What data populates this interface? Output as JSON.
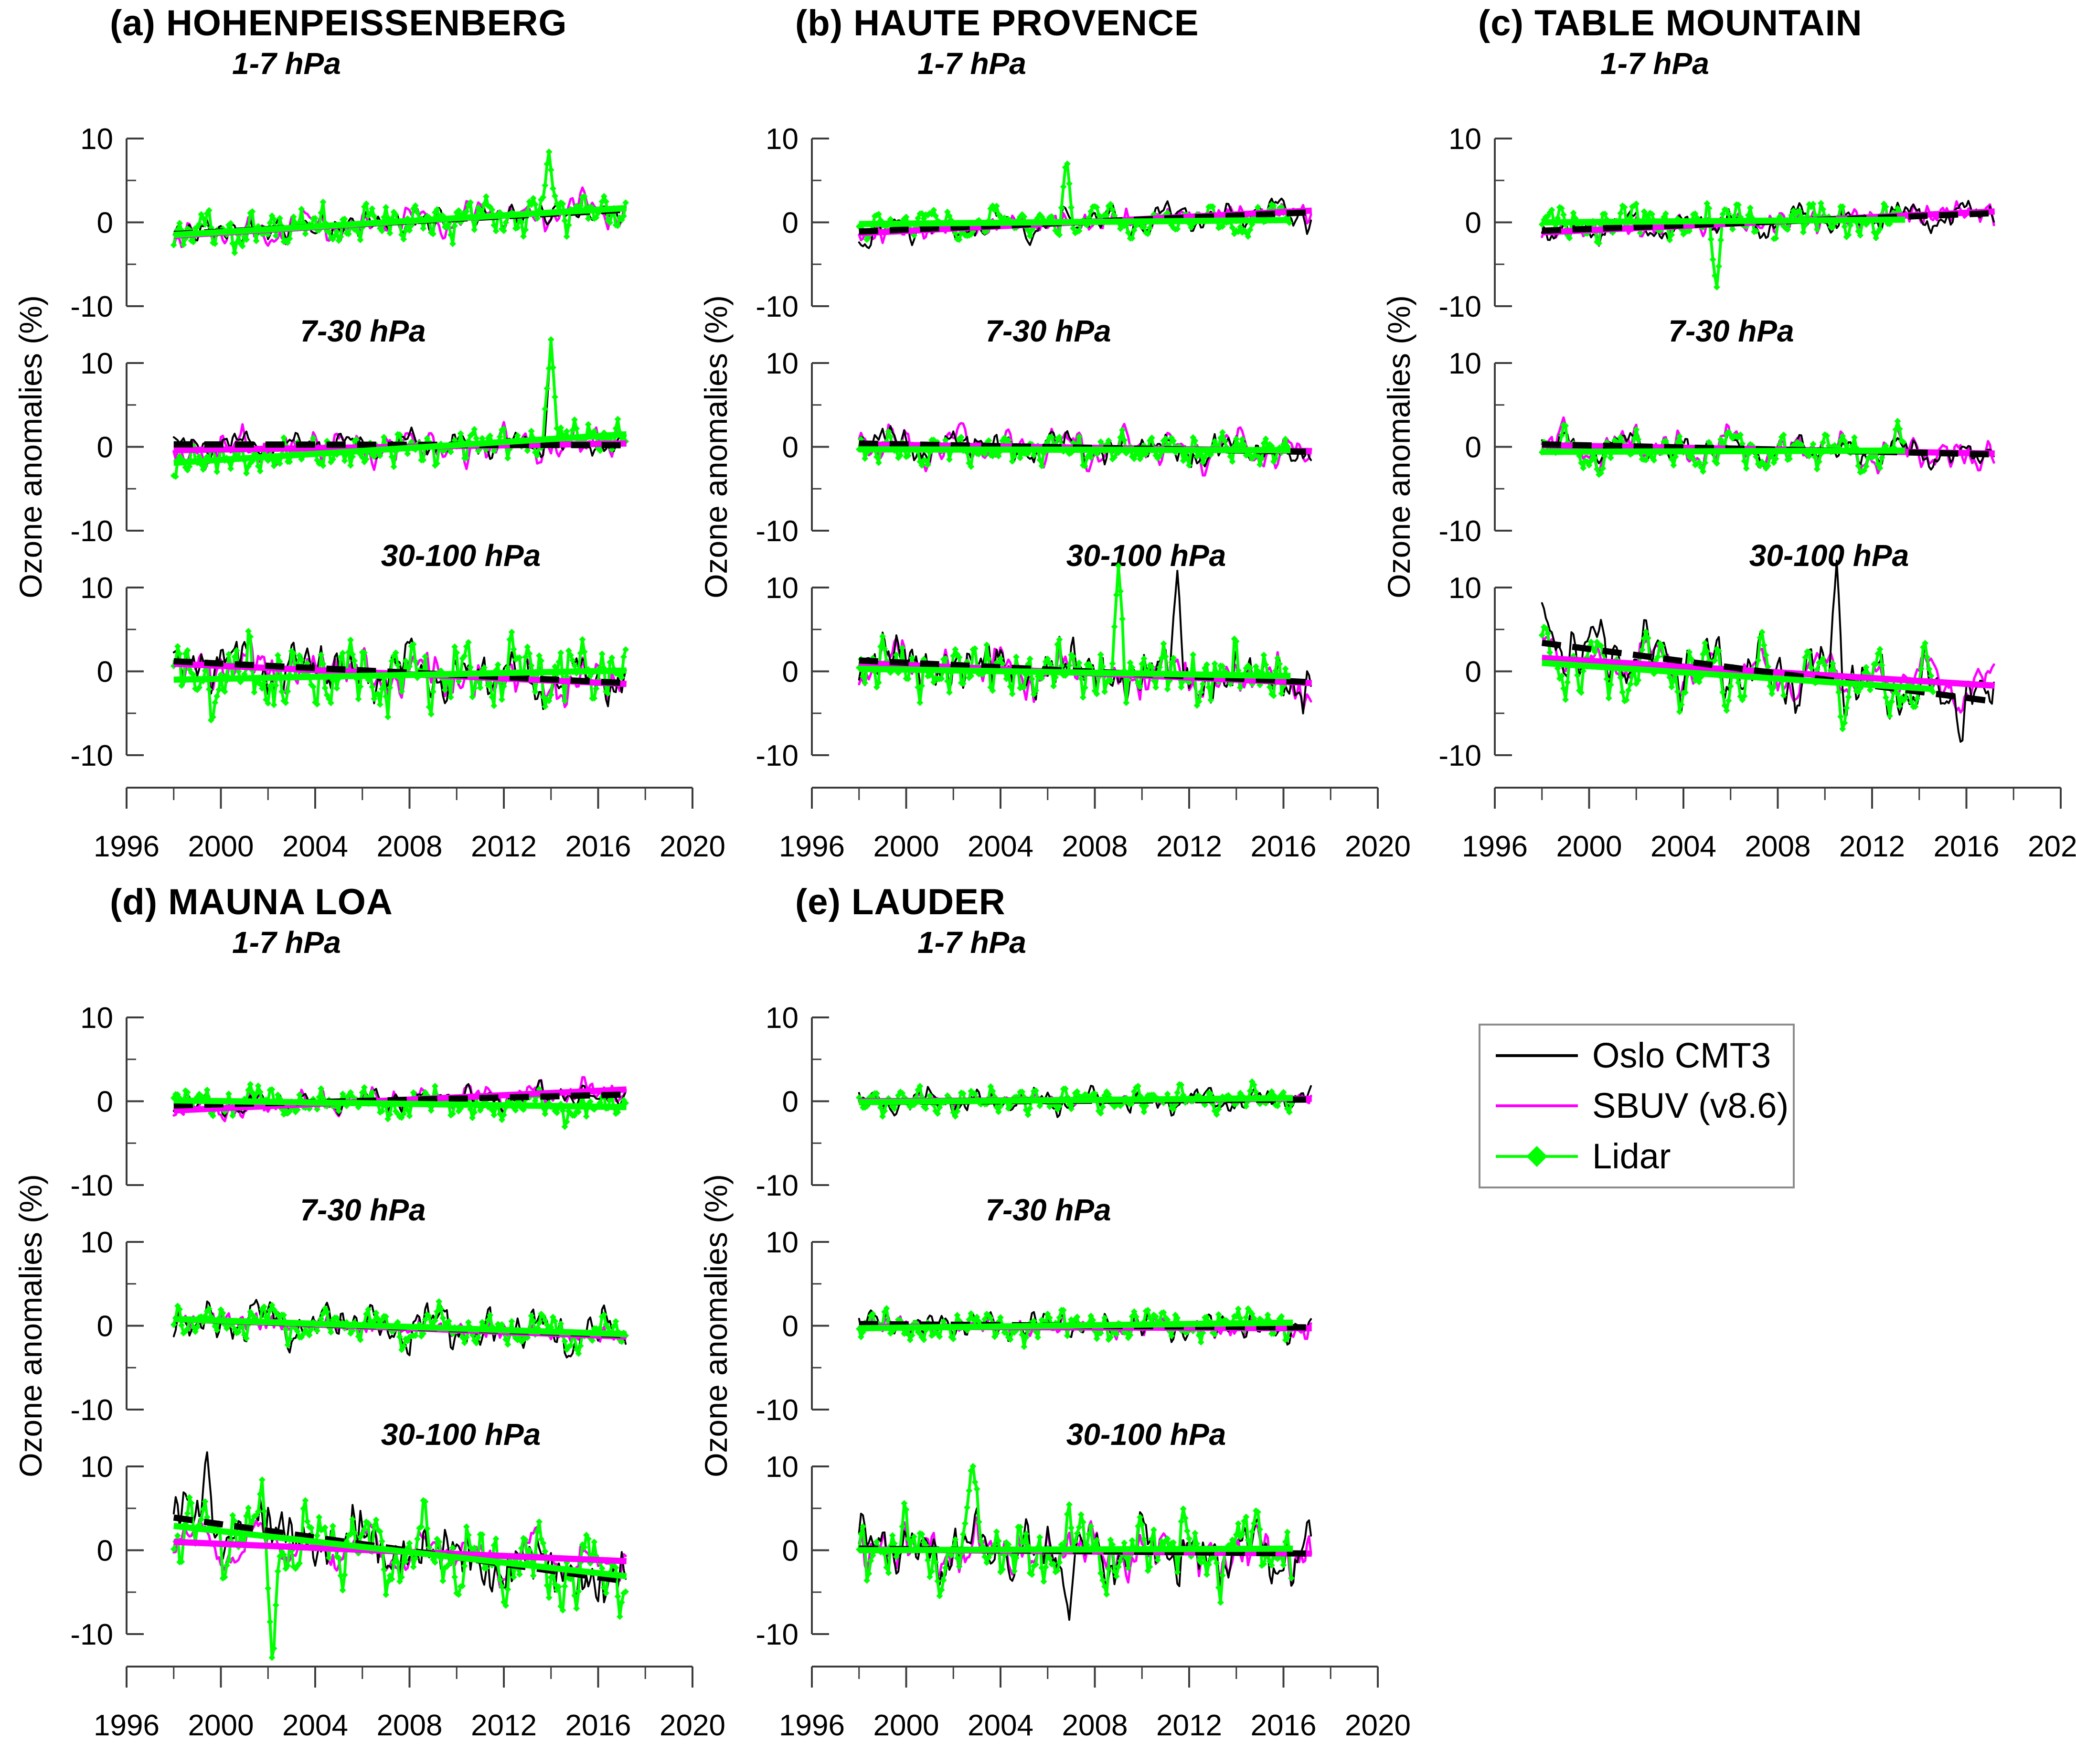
{
  "figure": {
    "background": "#FFFFFF"
  },
  "chart_data": {
    "type": "line",
    "description": "Monthly ozone anomaly time series (1998-2017) with linear trend lines, at five lidar stations, for three pressure layers each",
    "y_axis": {
      "label": "Ozone anomalies (%)",
      "major_ticks": [
        10,
        0,
        -10
      ],
      "minor_ticks": [
        5,
        -5
      ],
      "range_per_subplot": [
        -10,
        10
      ]
    },
    "x_axis": {
      "major_ticks": [
        1996,
        2000,
        2004,
        2008,
        2012,
        2016,
        2020
      ],
      "minor_ticks": [
        1998,
        2002,
        2006,
        2010,
        2014,
        2018
      ],
      "range": [
        1996,
        2020
      ]
    },
    "data_x_start": 1998.0,
    "data_x_end": 2017.2,
    "sampling": "monthly",
    "grid": false,
    "legend": {
      "position": "bottom-right-of-figure",
      "entries": [
        {
          "label": "Oslo CMT3",
          "color": "#000000",
          "style": "thin-line",
          "trend_style": "thick-dashed"
        },
        {
          "label": "SBUV (v8.6)",
          "color": "#FF00FF",
          "style": "thin-line",
          "trend_style": "thick-solid"
        },
        {
          "label": "Lidar",
          "color": "#00FF00",
          "style": "line-with-diamond-markers",
          "trend_style": "thick-solid"
        }
      ]
    },
    "panels": [
      {
        "id": "a",
        "title": "(a) HOHENPEISSENBERG",
        "subplots": [
          {
            "label": "1-7 hPa",
            "series": [
              {
                "name": "Oslo CMT3",
                "trend_1998": -1.4,
                "trend_2017": 1.5,
                "amplitude": 2.6,
                "seed": 101
              },
              {
                "name": "SBUV (v8.6)",
                "trend_1998": -1.6,
                "trend_2017": 1.7,
                "amplitude": 2.6,
                "seed": 102
              },
              {
                "name": "Lidar",
                "trend_1998": -1.5,
                "trend_2017": 1.7,
                "amplitude": 3.6,
                "seed": 103,
                "spike": [
                  2013.9,
                  8.8
                ]
              }
            ]
          },
          {
            "label": "7-30 hPa",
            "series": [
              {
                "name": "Oslo CMT3",
                "trend_1998": 0.3,
                "trend_2017": 0.2,
                "amplitude": 3.0,
                "seed": 104,
                "spike": [
                  2014.0,
                  12.3
                ]
              },
              {
                "name": "SBUV (v8.6)",
                "trend_1998": -0.4,
                "trend_2017": 0.4,
                "amplitude": 3.4,
                "seed": 105
              },
              {
                "name": "Lidar",
                "trend_1998": -1.9,
                "trend_2017": 1.5,
                "amplitude": 3.2,
                "seed": 106,
                "spike": [
                  2014.0,
                  12.8
                ]
              }
            ]
          },
          {
            "label": "30-100 hPa",
            "series": [
              {
                "name": "Oslo CMT3",
                "trend_1998": 1.2,
                "trend_2017": -1.4,
                "amplitude": 5.0,
                "seed": 107
              },
              {
                "name": "SBUV (v8.6)",
                "trend_1998": 0.9,
                "trend_2017": -1.5,
                "amplitude": 4.3,
                "seed": 108
              },
              {
                "name": "Lidar",
                "trend_1998": -1.0,
                "trend_2017": 0.1,
                "amplitude": 5.5,
                "seed": 109
              }
            ]
          }
        ]
      },
      {
        "id": "b",
        "title": "(b) HAUTE PROVENCE",
        "subplots": [
          {
            "label": "1-7 hPa",
            "series": [
              {
                "name": "Oslo CMT3",
                "trend_1998": -1.1,
                "trend_2017": 1.2,
                "amplitude": 2.4,
                "seed": 201
              },
              {
                "name": "SBUV (v8.6)",
                "trend_1998": -1.3,
                "trend_2017": 1.4,
                "amplitude": 2.4,
                "seed": 202
              },
              {
                "name": "Lidar",
                "trend_1998": -0.2,
                "trend_2017": 0.3,
                "amplitude": 3.0,
                "seed": 203,
                "x_end": 2016.3,
                "spike": [
                  2006.8,
                  7.8
                ]
              }
            ]
          },
          {
            "label": "7-30 hPa",
            "series": [
              {
                "name": "Oslo CMT3",
                "trend_1998": 0.4,
                "trend_2017": -0.6,
                "amplitude": 3.0,
                "seed": 204
              },
              {
                "name": "SBUV (v8.6)",
                "trend_1998": 0.3,
                "trend_2017": -0.5,
                "amplitude": 3.2,
                "seed": 205
              },
              {
                "name": "Lidar",
                "trend_1998": -0.3,
                "trend_2017": -0.4,
                "amplitude": 3.2,
                "seed": 206,
                "x_end": 2016.3
              }
            ]
          },
          {
            "label": "30-100 hPa",
            "series": [
              {
                "name": "Oslo CMT3",
                "trend_1998": 1.3,
                "trend_2017": -1.3,
                "amplitude": 5.2,
                "seed": 207,
                "spike": [
                  2011.5,
                  12.0
                ]
              },
              {
                "name": "SBUV (v8.6)",
                "trend_1998": 1.0,
                "trend_2017": -1.4,
                "amplitude": 4.2,
                "seed": 208
              },
              {
                "name": "Lidar",
                "trend_1998": 0.3,
                "trend_2017": -0.6,
                "amplitude": 5.2,
                "seed": 209,
                "x_end": 2016.3,
                "spike": [
                  2009.0,
                  12.6
                ]
              }
            ]
          }
        ]
      },
      {
        "id": "c",
        "title": "(c) TABLE MOUNTAIN",
        "subplots": [
          {
            "label": "1-7 hPa",
            "series": [
              {
                "name": "Oslo CMT3",
                "trend_1998": -1.0,
                "trend_2017": 1.1,
                "amplitude": 2.3,
                "seed": 301
              },
              {
                "name": "SBUV (v8.6)",
                "trend_1998": -1.2,
                "trend_2017": 1.3,
                "amplitude": 2.3,
                "seed": 302
              },
              {
                "name": "Lidar",
                "trend_1998": 0.0,
                "trend_2017": 0.4,
                "amplitude": 3.2,
                "seed": 303,
                "x_end": 2013.4,
                "gaps": [
                  [
                    2007.1,
                    2007.8
                  ]
                ],
                "spike": [
                  2005.4,
                  -8.2
                ]
              }
            ]
          },
          {
            "label": "7-30 hPa",
            "series": [
              {
                "name": "Oslo CMT3",
                "trend_1998": 0.3,
                "trend_2017": -0.9,
                "amplitude": 2.6,
                "seed": 304
              },
              {
                "name": "SBUV (v8.6)",
                "trend_1998": 0.2,
                "trend_2017": -0.8,
                "amplitude": 2.8,
                "seed": 305
              },
              {
                "name": "Lidar",
                "trend_1998": -0.6,
                "trend_2017": -0.4,
                "amplitude": 2.6,
                "seed": 306,
                "x_end": 2013.4
              }
            ]
          },
          {
            "label": "30-100 hPa",
            "series": [
              {
                "name": "Oslo CMT3",
                "trend_1998": 3.4,
                "trend_2017": -3.6,
                "amplitude": 6.0,
                "seed": 307,
                "spike": [
                  2010.5,
                  13.5
                ]
              },
              {
                "name": "SBUV (v8.6)",
                "trend_1998": 1.6,
                "trend_2017": -1.7,
                "amplitude": 4.5,
                "seed": 308
              },
              {
                "name": "Lidar",
                "trend_1998": 1.0,
                "trend_2017": -2.6,
                "amplitude": 6.0,
                "seed": 309,
                "x_end": 2014.6,
                "gaps": [
                  [
                    2008.3,
                    2009.0
                  ]
                ]
              }
            ]
          }
        ]
      },
      {
        "id": "d",
        "title": "(d) MAUNA LOA",
        "subplots": [
          {
            "label": "1-7 hPa",
            "series": [
              {
                "name": "Oslo CMT3",
                "trend_1998": -0.5,
                "trend_2017": 0.8,
                "amplitude": 2.2,
                "seed": 401
              },
              {
                "name": "SBUV (v8.6)",
                "trend_1998": -1.1,
                "trend_2017": 1.4,
                "amplitude": 2.4,
                "seed": 402
              },
              {
                "name": "Lidar",
                "trend_1998": 0.1,
                "trend_2017": -0.7,
                "amplitude": 3.0,
                "seed": 403
              }
            ]
          },
          {
            "label": "7-30 hPa",
            "series": [
              {
                "name": "Oslo CMT3",
                "trend_1998": 0.8,
                "trend_2017": -1.1,
                "amplitude": 3.2,
                "seed": 404
              },
              {
                "name": "SBUV (v8.6)",
                "trend_1998": 0.8,
                "trend_2017": -1.3,
                "amplitude": 3.4,
                "seed": 405
              },
              {
                "name": "Lidar",
                "trend_1998": 0.8,
                "trend_2017": -1.0,
                "amplitude": 3.2,
                "seed": 406
              }
            ]
          },
          {
            "label": "30-100 hPa",
            "series": [
              {
                "name": "Oslo CMT3",
                "trend_1998": 3.9,
                "trend_2017": -3.7,
                "amplitude": 6.2,
                "seed": 407,
                "spike": [
                  1999.4,
                  12.2
                ]
              },
              {
                "name": "SBUV (v8.6)",
                "trend_1998": 1.0,
                "trend_2017": -1.3,
                "amplitude": 4.5,
                "seed": 408
              },
              {
                "name": "Lidar",
                "trend_1998": 2.9,
                "trend_2017": -3.1,
                "amplitude": 6.2,
                "seed": 409,
                "spike": [
                  2002.2,
                  -14.2
                ]
              }
            ]
          }
        ]
      },
      {
        "id": "e",
        "title": "(e) LAUDER",
        "subplots": [
          {
            "label": "1-7 hPa",
            "series": [
              {
                "name": "Oslo CMT3",
                "trend_1998": -0.1,
                "trend_2017": 0.2,
                "amplitude": 2.0,
                "seed": 501
              },
              {
                "name": "SBUV (v8.6)",
                "trend_1998": 0.0,
                "trend_2017": 0.3,
                "amplitude": 1.8,
                "seed": 502
              },
              {
                "name": "Lidar",
                "trend_1998": -0.1,
                "trend_2017": 0.4,
                "amplitude": 2.4,
                "seed": 503,
                "x_end": 2016.4
              }
            ]
          },
          {
            "label": "7-30 hPa",
            "series": [
              {
                "name": "Oslo CMT3",
                "trend_1998": 0.2,
                "trend_2017": -0.2,
                "amplitude": 2.8,
                "seed": 504
              },
              {
                "name": "SBUV (v8.6)",
                "trend_1998": -0.1,
                "trend_2017": -0.3,
                "amplitude": 2.8,
                "seed": 505
              },
              {
                "name": "Lidar",
                "trend_1998": -0.3,
                "trend_2017": 0.4,
                "amplitude": 2.8,
                "seed": 506,
                "x_end": 2016.4
              }
            ]
          },
          {
            "label": "30-100 hPa",
            "series": [
              {
                "name": "Oslo CMT3",
                "trend_1998": 0.2,
                "trend_2017": -0.4,
                "amplitude": 5.2,
                "seed": 507,
                "spike": [
                  2006.9,
                  -9.0
                ]
              },
              {
                "name": "SBUV (v8.6)",
                "trend_1998": 0.1,
                "trend_2017": -0.4,
                "amplitude": 4.2,
                "seed": 508
              },
              {
                "name": "Lidar",
                "trend_1998": 0.0,
                "trend_2017": 0.2,
                "amplitude": 5.0,
                "seed": 509,
                "x_end": 2016.4,
                "spike": [
                  2002.8,
                  11.2
                ]
              }
            ]
          }
        ]
      }
    ]
  }
}
